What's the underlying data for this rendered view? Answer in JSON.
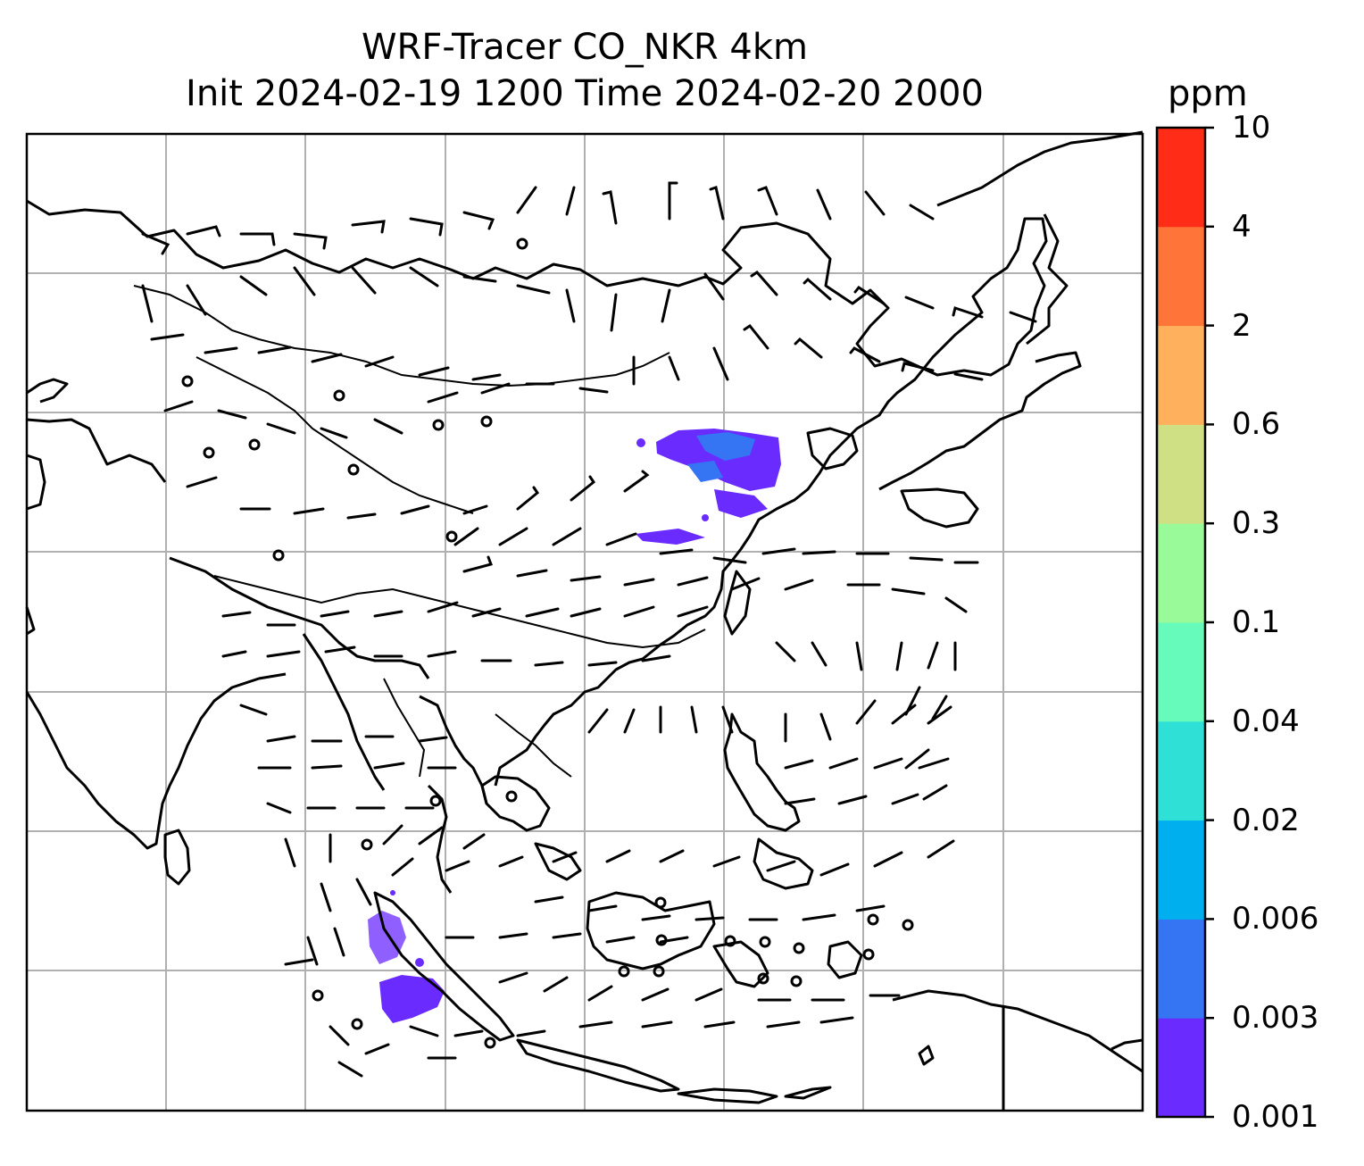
{
  "title": {
    "line1": "WRF-Tracer CO_NKR 4km",
    "line2": "Init 2024-02-19 1200 Time 2024-02-20 2000"
  },
  "colorbar": {
    "unit": "ppm",
    "levels": [
      "0.001",
      "0.003",
      "0.006",
      "0.02",
      "0.04",
      "0.1",
      "0.3",
      "0.6",
      "2",
      "4",
      "10"
    ],
    "colors": [
      "#6a2bff",
      "#3574f3",
      "#00b0ee",
      "#2ee0d6",
      "#66fabb",
      "#98fa98",
      "#cfe084",
      "#ffb05c",
      "#ff7439",
      "#ff2d17"
    ]
  },
  "map": {
    "gridlines": true,
    "coastlines": true,
    "wind_barbs": true,
    "tracer_plumes": [
      {
        "region": "North China Plain",
        "level": "0.001–0.006"
      },
      {
        "region": "Southwest of Sumatra",
        "level": "0.001–0.003"
      }
    ]
  }
}
